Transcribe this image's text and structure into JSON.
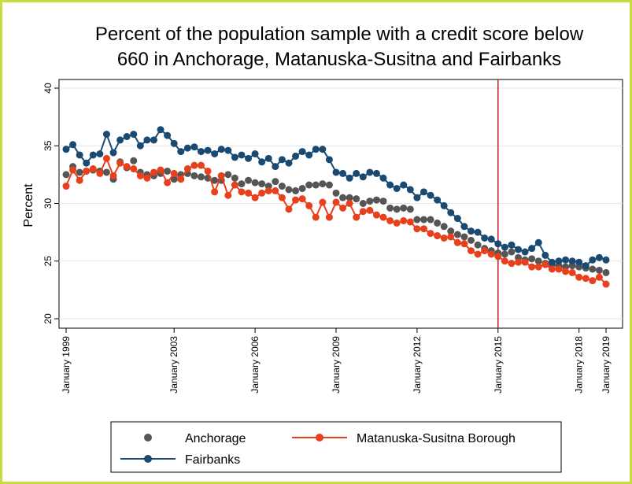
{
  "chart_data": {
    "type": "line",
    "title": [
      "Percent of the population sample with a credit score below",
      "660 in Anchorage, Matanuska-Susitna and Fairbanks"
    ],
    "y_label": "Percent",
    "x": [
      1999,
      1999.25,
      1999.5,
      1999.75,
      2000,
      2000.25,
      2000.5,
      2000.75,
      2001,
      2001.25,
      2001.5,
      2001.75,
      2002,
      2002.25,
      2002.5,
      2002.75,
      2003,
      2003.25,
      2003.5,
      2003.75,
      2004,
      2004.25,
      2004.5,
      2004.75,
      2005,
      2005.25,
      2005.5,
      2005.75,
      2006,
      2006.25,
      2006.5,
      2006.75,
      2007,
      2007.25,
      2007.5,
      2007.75,
      2008,
      2008.25,
      2008.5,
      2008.75,
      2009,
      2009.25,
      2009.5,
      2009.75,
      2010,
      2010.25,
      2010.5,
      2010.75,
      2011,
      2011.25,
      2011.5,
      2011.75,
      2012,
      2012.25,
      2012.5,
      2012.75,
      2013,
      2013.25,
      2013.5,
      2013.75,
      2014,
      2014.25,
      2014.5,
      2014.75,
      2015,
      2015.25,
      2015.5,
      2015.75,
      2016,
      2016.25,
      2016.5,
      2016.75,
      2017,
      2017.25,
      2017.5,
      2017.75,
      2018,
      2018.25,
      2018.5,
      2018.75,
      2019
    ],
    "series": [
      {
        "name": "Anchorage",
        "color": "#555555",
        "style": "markers",
        "values": [
          32.5,
          33.2,
          32.7,
          32.8,
          32.9,
          32.8,
          32.7,
          32.1,
          33.6,
          33.1,
          33.7,
          32.7,
          32.5,
          32.4,
          32.6,
          32.8,
          32.1,
          32.5,
          32.6,
          32.4,
          32.3,
          32.2,
          32.0,
          32.0,
          32.5,
          32.2,
          31.7,
          32.0,
          31.8,
          31.7,
          31.5,
          31.9,
          31.5,
          31.2,
          31.1,
          31.3,
          31.6,
          31.6,
          31.7,
          31.6,
          30.9,
          30.5,
          30.5,
          30.4,
          30.0,
          30.2,
          30.3,
          30.2,
          29.6,
          29.5,
          29.6,
          29.5,
          28.6,
          28.6,
          28.6,
          28.3,
          28.0,
          27.6,
          27.3,
          27.1,
          26.8,
          26.4,
          26.1,
          25.9,
          25.7,
          25.6,
          25.8,
          25.3,
          25.1,
          25.2,
          25.0,
          24.8,
          24.7,
          24.6,
          24.5,
          24.6,
          24.5,
          24.4,
          24.3,
          24.2,
          24.0
        ]
      },
      {
        "name": "Matanuska-Susitna Borough",
        "color": "#e8401c",
        "style": "line-markers",
        "values": [
          31.5,
          32.9,
          32.0,
          32.8,
          33.0,
          32.6,
          33.9,
          32.4,
          33.5,
          33.2,
          33.0,
          32.4,
          32.2,
          32.7,
          32.9,
          31.8,
          32.6,
          32.1,
          33.0,
          33.3,
          33.3,
          32.8,
          31.0,
          32.4,
          30.7,
          31.6,
          31.0,
          30.9,
          30.5,
          30.9,
          31.1,
          31.1,
          30.5,
          29.5,
          30.3,
          30.4,
          29.8,
          28.8,
          30.1,
          28.8,
          30.1,
          29.6,
          30.0,
          28.8,
          29.3,
          29.4,
          29.0,
          28.8,
          28.5,
          28.3,
          28.5,
          28.4,
          27.8,
          27.8,
          27.4,
          27.2,
          27.0,
          27.1,
          26.6,
          26.5,
          25.9,
          25.6,
          25.9,
          25.6,
          25.4,
          25.0,
          24.8,
          24.9,
          24.9,
          24.5,
          24.5,
          24.7,
          24.3,
          24.3,
          24.1,
          24.0,
          23.6,
          23.5,
          23.3,
          23.6,
          23.0
        ]
      },
      {
        "name": "Fairbanks",
        "color": "#1a4a72",
        "style": "line-markers",
        "values": [
          34.7,
          35.1,
          34.2,
          33.5,
          34.2,
          34.3,
          36.0,
          34.4,
          35.5,
          35.8,
          36.0,
          35.0,
          35.5,
          35.5,
          36.4,
          35.9,
          35.2,
          34.5,
          34.8,
          34.9,
          34.5,
          34.6,
          34.3,
          34.7,
          34.6,
          34.0,
          34.2,
          33.9,
          34.3,
          33.6,
          33.9,
          33.2,
          33.8,
          33.5,
          34.1,
          34.5,
          34.2,
          34.7,
          34.7,
          33.8,
          32.7,
          32.6,
          32.2,
          32.6,
          32.3,
          32.7,
          32.6,
          32.2,
          31.6,
          31.3,
          31.6,
          31.2,
          30.5,
          31.0,
          30.7,
          30.3,
          29.8,
          29.2,
          28.7,
          28.0,
          27.6,
          27.5,
          27.0,
          26.9,
          26.5,
          26.2,
          26.4,
          26.0,
          25.8,
          26.1,
          26.6,
          25.5,
          24.9,
          25.0,
          25.1,
          25.0,
          24.9,
          24.6,
          25.1,
          25.3,
          25.1
        ]
      }
    ],
    "xlim": [
      1999,
      2019
    ],
    "xticks": [
      {
        "value": 1999,
        "label": "January 1999"
      },
      {
        "value": 2003,
        "label": "January 2003"
      },
      {
        "value": 2006,
        "label": "January 2006"
      },
      {
        "value": 2009,
        "label": "January 2009"
      },
      {
        "value": 2012,
        "label": "January 2012"
      },
      {
        "value": 2015,
        "label": "January 2015"
      },
      {
        "value": 2018,
        "label": "January 2018"
      },
      {
        "value": 2019,
        "label": "January 2019"
      }
    ],
    "ylim": [
      20,
      40
    ],
    "yticks": [
      20,
      25,
      30,
      35,
      40
    ],
    "vline": {
      "value": 2015,
      "color": "#c0202a"
    },
    "grid": true
  }
}
